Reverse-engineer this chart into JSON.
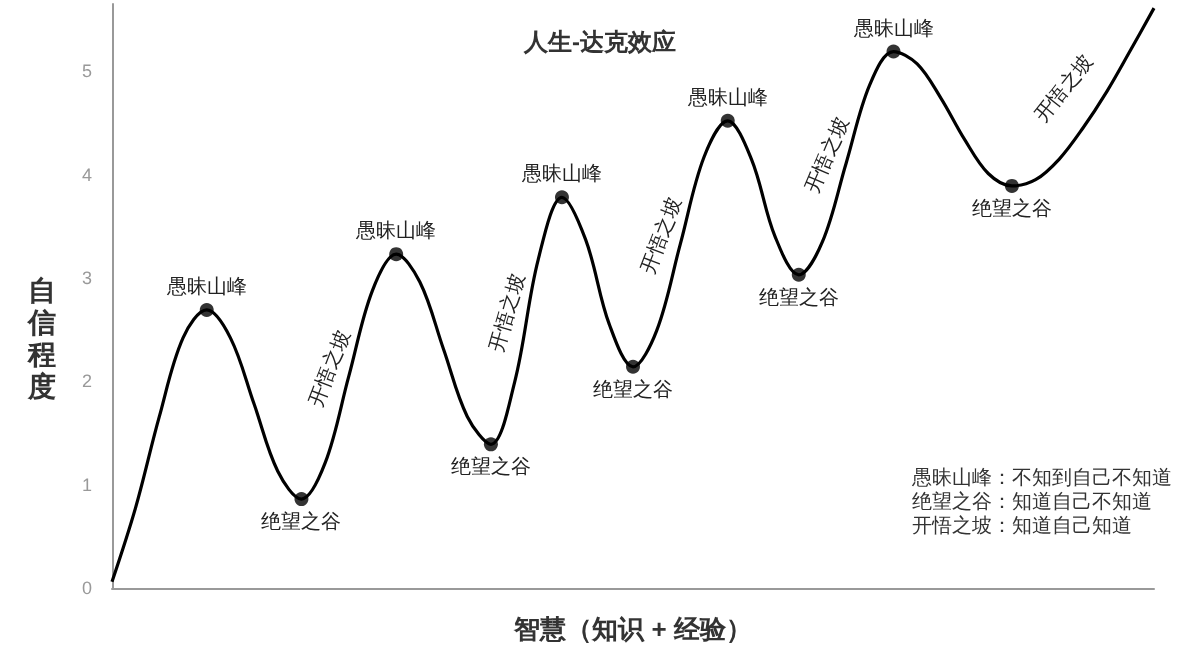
{
  "chart_data": {
    "type": "line",
    "title": "人生-达克效应",
    "xlabel": "智慧（知识 + 经验）",
    "ylabel": "自信程度",
    "categories": [
      null,
      null,
      null,
      null,
      null,
      null,
      null,
      null,
      null,
      null,
      null,
      null,
      null,
      null,
      null,
      null,
      null,
      null,
      null,
      null,
      null,
      null,
      null,
      null,
      null,
      null,
      null,
      null,
      null,
      null,
      null,
      null,
      null,
      null,
      null,
      null,
      null,
      null,
      null,
      null,
      null,
      null,
      null,
      null,
      null
    ],
    "series": [
      {
        "color": "#000000",
        "marker": "none",
        "values": [
          0.06,
          0.78,
          1.66,
          2.42,
          2.69,
          2.42,
          1.78,
          1.13,
          0.86,
          1.21,
          2.05,
          2.88,
          3.23,
          2.96,
          2.31,
          1.66,
          1.39,
          1.99,
          3.18,
          3.78,
          3.37,
          2.55,
          2.14,
          2.49,
          3.33,
          4.17,
          4.52,
          4.15,
          3.4,
          3.03,
          3.35,
          4.11,
          4.87,
          5.19,
          5.07,
          4.74,
          4.34,
          4.01,
          3.89,
          3.95,
          4.15,
          4.45,
          4.8,
          5.2,
          5.61
        ]
      },
      {
        "type": "scatter",
        "color": "#000000",
        "marker": "circle",
        "values": [
          null,
          null,
          null,
          null,
          2.69,
          null,
          null,
          null,
          0.86,
          null,
          null,
          null,
          3.23,
          null,
          null,
          null,
          1.39,
          null,
          null,
          3.78,
          null,
          null,
          2.14,
          null,
          null,
          null,
          4.52,
          null,
          null,
          3.03,
          null,
          null,
          null,
          5.19,
          null,
          null,
          null,
          null,
          3.89,
          null,
          null,
          null,
          null,
          null,
          null
        ]
      }
    ],
    "ylim": [
      0,
      5.65
    ],
    "yticks": [
      0,
      1,
      2,
      3,
      4,
      5
    ],
    "grid": false,
    "tick_labels": "y",
    "line_style": "solid",
    "annotations": [
      {
        "text": "愚昧山峰",
        "y": 2.69
      },
      {
        "text": "绝望之谷",
        "y": 0.86
      },
      {
        "text": "愚昧山峰",
        "y": 3.23
      },
      {
        "text": "绝望之谷",
        "y": 1.39
      },
      {
        "text": "愚昧山峰",
        "y": 3.78
      },
      {
        "text": "绝望之谷",
        "y": 2.14
      },
      {
        "text": "愚昧山峰",
        "y": 4.52
      },
      {
        "text": "绝望之谷",
        "y": 3.03
      },
      {
        "text": "愚昧山峰",
        "y": 5.19
      },
      {
        "text": "绝望之谷",
        "y": 3.89
      },
      "开悟之坡",
      "开悟之坡",
      "开悟之坡",
      "开悟之坡",
      "开悟之坡",
      "愚昧山峰：不知到自己不知道",
      "绝望之谷：知道自己不知道",
      "开悟之坡：知道自己知道"
    ]
  }
}
